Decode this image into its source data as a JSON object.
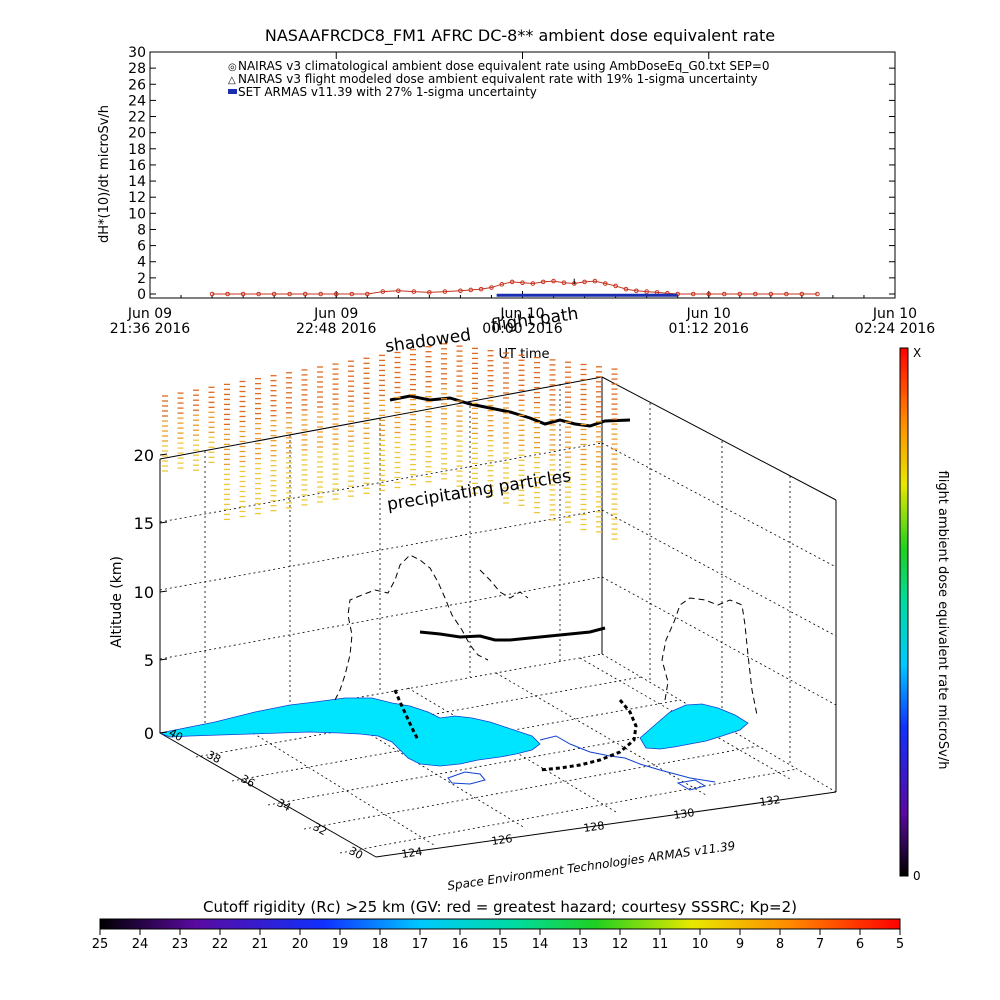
{
  "chart_data": [
    {
      "type": "line",
      "title": "NASAAFRCDC8_FM1 AFRC DC-8** ambient dose equivalent rate",
      "ylabel": "dH*(10)/dt microSv/h",
      "xlabel": "UT time",
      "ylim": [
        0,
        30
      ],
      "yticks": [
        "0",
        "2",
        "4",
        "6",
        "8",
        "10",
        "12",
        "14",
        "16",
        "18",
        "20",
        "22",
        "24",
        "26",
        "28",
        "30"
      ],
      "xticks": [
        {
          "date": "Jun 09",
          "time": "21:36 2016"
        },
        {
          "date": "Jun 09",
          "time": "22:48 2016"
        },
        {
          "date": "Jun 10",
          "time": "00:00 2016"
        },
        {
          "date": "Jun 10",
          "time": "01:12 2016"
        },
        {
          "date": "Jun 10",
          "time": "02:24 2016"
        }
      ],
      "legend": [
        "NAIRAS v3 climatological ambient dose equivalent rate using AmbDoseEq_G0.txt SEP=0",
        "NAIRAS v3 flight modeled dose ambient equivalent rate with 19% 1-sigma uncertainty",
        "SET ARMAS v11.39 with 27% 1-sigma uncertainty"
      ],
      "legend_placement": "top-left",
      "series": [
        {
          "name": "NAIRAS v3 climatological ambient dose equivalent rate using AmbDoseEq_G0.txt SEP=0",
          "color": "#c8321e",
          "x_minutes": [
            0,
            6,
            12,
            18,
            24,
            30,
            36,
            42,
            48,
            54,
            60,
            66,
            72,
            78,
            84,
            90,
            96,
            100,
            104,
            108,
            112,
            116,
            120,
            124,
            128,
            132,
            136,
            140,
            144,
            148,
            152,
            156,
            160,
            164,
            168,
            172,
            176,
            180,
            186,
            192,
            198,
            204,
            210,
            216,
            222,
            228,
            234
          ],
          "values": [
            0,
            0,
            0,
            0,
            0,
            0,
            0,
            0,
            0,
            0,
            0,
            0.3,
            0.4,
            0.3,
            0.2,
            0.3,
            0.4,
            0.5,
            0.6,
            0.8,
            1.2,
            1.5,
            1.4,
            1.3,
            1.5,
            1.6,
            1.4,
            1.3,
            1.5,
            1.6,
            1.3,
            1.0,
            0.6,
            0.4,
            0.3,
            0.2,
            0.1,
            0,
            0,
            0,
            0,
            0,
            0,
            0,
            0,
            0,
            0
          ]
        },
        {
          "name": "SET ARMAS v11.39 with 27% 1-sigma uncertainty",
          "color": "#1a2fb0",
          "x_minutes": [
            110,
            180
          ],
          "values": [
            0.1,
            0.1
          ]
        }
      ]
    },
    {
      "type": "scatter",
      "annotations": [
        "shadowed",
        "flight path",
        "precipitating particles"
      ],
      "zlabel": "Altitude (km)",
      "zticks": [
        "0",
        "5",
        "10",
        "15",
        "20"
      ],
      "lat_ticks": [
        "30",
        "32",
        "34",
        "36",
        "38",
        "40"
      ],
      "lon_ticks": [
        "124",
        "126",
        "128",
        "130",
        "132"
      ],
      "credit": "Space Environment Technologies ARMAS v11.39",
      "colorbar": {
        "label": "flight ambient dose equivalent rate microSv/h",
        "min_label": "0",
        "max_label": "X"
      }
    },
    {
      "type": "heatmap",
      "title": "Cutoff rigidity (Rc) >25 km (GV: red = greatest hazard; courtesy SSSRC; Kp=2)",
      "ticks": [
        "25",
        "24",
        "23",
        "22",
        "21",
        "20",
        "19",
        "18",
        "17",
        "16",
        "15",
        "14",
        "13",
        "12",
        "11",
        "10",
        "9",
        "8",
        "7",
        "6",
        "5"
      ]
    }
  ],
  "colors": {
    "nairas": "#c8321e",
    "armas": "#1a2fb0",
    "land": "#00e5ff",
    "coast": "#1040d0",
    "track": "#000000"
  }
}
